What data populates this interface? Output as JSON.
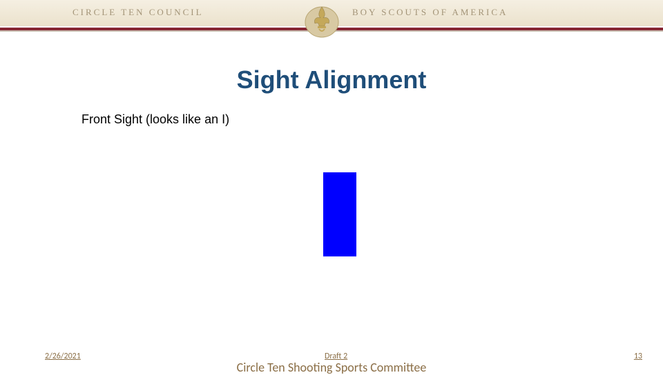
{
  "header": {
    "org_left": "CIRCLE TEN COUNCIL",
    "org_right": "BOY SCOUTS OF AMERICA",
    "text_color": "#a39477",
    "bar_gradient_top": "#f5efe2",
    "bar_gradient_bottom": "#ebe2cc",
    "divider_color": "#862633"
  },
  "title": {
    "text": "Sight Alignment",
    "color": "#1f4e79",
    "fontsize": 36
  },
  "subtitle": {
    "text": "Front Sight (looks like an I)",
    "color": "#000000",
    "fontsize": 18
  },
  "front_sight": {
    "color": "#0000ff",
    "width": 48,
    "height": 122
  },
  "footer": {
    "date": "2/26/2021",
    "draft": "Draft 2",
    "page": "13",
    "committee": "Circle Ten Shooting Sports Committee",
    "text_color": "#8b6f47",
    "committee_color": "#8b6f47"
  }
}
